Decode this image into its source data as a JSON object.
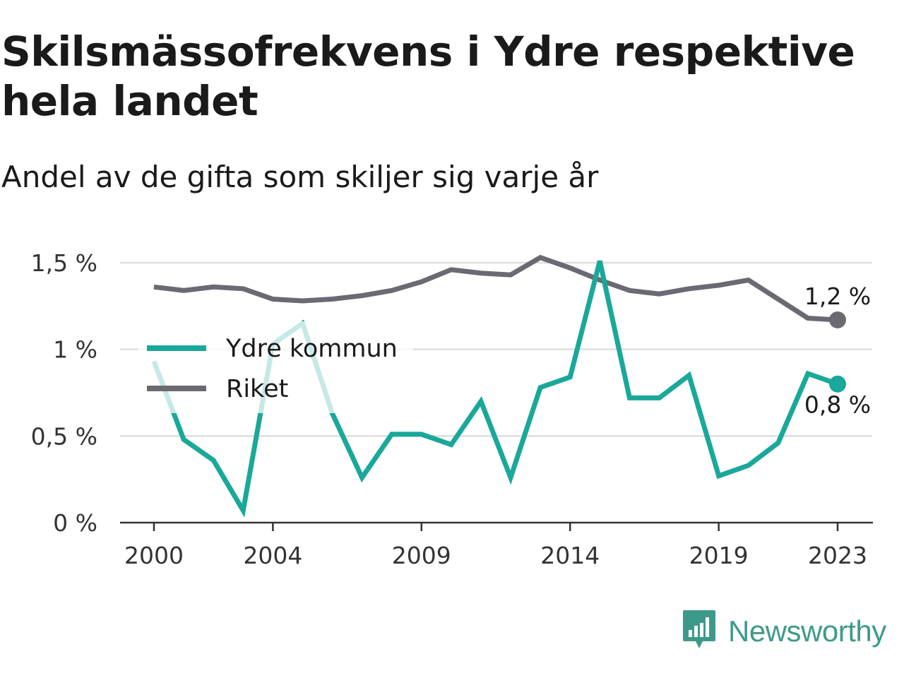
{
  "chart_data": {
    "type": "line",
    "title": "Skilsmässofrekvens i Ydre respektive hela landet",
    "subtitle": "Andel av de gifta som skiljer sig varje år",
    "x": [
      2000,
      2001,
      2002,
      2003,
      2004,
      2005,
      2006,
      2007,
      2008,
      2009,
      2010,
      2011,
      2012,
      2013,
      2014,
      2015,
      2016,
      2017,
      2018,
      2019,
      2020,
      2021,
      2022,
      2023
    ],
    "x_tick_labels": [
      "2000",
      "2004",
      "2009",
      "2014",
      "2019",
      "2023"
    ],
    "x_tick_values": [
      2000,
      2004,
      2009,
      2014,
      2019,
      2023
    ],
    "y_tick_labels": [
      "0 %",
      "0,5 %",
      "1 %",
      "1,5 %"
    ],
    "y_tick_values": [
      0,
      0.5,
      1,
      1.5
    ],
    "ylim": [
      0,
      1.5
    ],
    "grid": true,
    "legend_position": "left",
    "series": [
      {
        "name": "Ydre kommun",
        "color": "#1aa89a",
        "values": [
          0.93,
          0.48,
          0.36,
          0.07,
          1.03,
          1.15,
          0.63,
          0.26,
          0.51,
          0.51,
          0.45,
          0.7,
          0.26,
          0.78,
          0.84,
          1.51,
          0.72,
          0.72,
          0.85,
          0.27,
          0.33,
          0.46,
          0.86,
          0.8
        ],
        "end_label": "0,8 %"
      },
      {
        "name": "Riket",
        "color": "#6b6a72",
        "values": [
          1.36,
          1.34,
          1.36,
          1.35,
          1.29,
          1.28,
          1.29,
          1.31,
          1.34,
          1.39,
          1.46,
          1.44,
          1.43,
          1.53,
          1.47,
          1.4,
          1.34,
          1.32,
          1.35,
          1.37,
          1.4,
          1.29,
          1.18,
          1.17
        ],
        "end_label": "1,2 %"
      }
    ]
  },
  "legend": {
    "ydre": "Ydre kommun",
    "riket": "Riket"
  },
  "brand": {
    "name": "Newsworthy",
    "logo_icon": "newsworthy-logo-icon",
    "color": "#3d9a8b"
  }
}
